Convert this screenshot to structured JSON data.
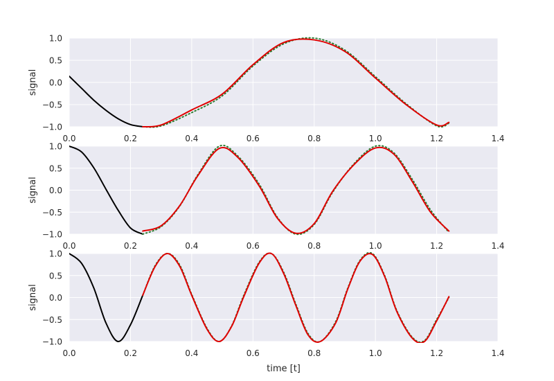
{
  "chart_data": [
    {
      "type": "line",
      "title": "",
      "ylabel": "signal",
      "xlabel": "",
      "xlim": [
        0.0,
        1.4
      ],
      "ylim": [
        -1.0,
        1.0
      ],
      "xticks": [
        "0.0",
        "0.2",
        "0.4",
        "0.6",
        "0.8",
        "1.0",
        "1.2",
        "1.4"
      ],
      "yticks": [
        "1.0",
        "0.5",
        "0.0",
        "−0.5",
        "−1.0"
      ],
      "grid": true,
      "series": [
        {
          "role": "input",
          "color": "#000000",
          "style": "solid",
          "x": [
            0.0,
            0.04,
            0.08,
            0.12,
            0.16,
            0.2,
            0.24
          ],
          "y": [
            0.14,
            -0.13,
            -0.4,
            -0.63,
            -0.82,
            -0.95,
            -1.0
          ]
        },
        {
          "role": "target",
          "color": "#2e7d32",
          "style": "dotted",
          "x": [
            0.24,
            0.3,
            0.4,
            0.5,
            0.6,
            0.7,
            0.8,
            0.9,
            1.0,
            1.1,
            1.2,
            1.24
          ],
          "y": [
            -1.0,
            -0.98,
            -0.68,
            -0.3,
            0.37,
            0.87,
            1.0,
            0.73,
            0.13,
            -0.48,
            -0.98,
            -0.92
          ]
        },
        {
          "role": "prediction",
          "color": "#e00000",
          "style": "solid",
          "x": [
            0.24,
            0.3,
            0.4,
            0.5,
            0.6,
            0.7,
            0.8,
            0.9,
            1.0,
            1.1,
            1.2,
            1.24
          ],
          "y": [
            -1.0,
            -0.96,
            -0.62,
            -0.26,
            0.4,
            0.9,
            0.96,
            0.7,
            0.1,
            -0.5,
            -0.96,
            -0.9
          ]
        }
      ]
    },
    {
      "type": "line",
      "title": "",
      "ylabel": "signal",
      "xlabel": "",
      "xlim": [
        0.0,
        1.4
      ],
      "ylim": [
        -1.0,
        1.0
      ],
      "xticks": [
        "0.0",
        "0.2",
        "0.4",
        "0.6",
        "0.8",
        "1.0",
        "1.2",
        "1.4"
      ],
      "yticks": [
        "1.0",
        "0.5",
        "0.0",
        "−0.5",
        "−1.0"
      ],
      "grid": true,
      "series": [
        {
          "role": "input",
          "color": "#000000",
          "style": "solid",
          "x": [
            0.0,
            0.04,
            0.08,
            0.12,
            0.16,
            0.2,
            0.24
          ],
          "y": [
            1.0,
            0.87,
            0.51,
            0.02,
            -0.46,
            -0.86,
            -1.0
          ]
        },
        {
          "role": "target",
          "color": "#2e7d32",
          "style": "dotted",
          "x": [
            0.24,
            0.3,
            0.36,
            0.42,
            0.49,
            0.55,
            0.62,
            0.68,
            0.74,
            0.8,
            0.86,
            0.93,
            1.0,
            1.06,
            1.12,
            1.18,
            1.24
          ],
          "y": [
            -1.0,
            -0.83,
            -0.37,
            0.35,
            1.0,
            0.78,
            0.14,
            -0.62,
            -1.0,
            -0.78,
            -0.05,
            0.6,
            1.0,
            0.85,
            0.25,
            -0.45,
            -0.96
          ]
        },
        {
          "role": "prediction",
          "color": "#e00000",
          "style": "solid",
          "x": [
            0.24,
            0.3,
            0.36,
            0.42,
            0.49,
            0.55,
            0.62,
            0.68,
            0.74,
            0.8,
            0.86,
            0.93,
            1.0,
            1.06,
            1.12,
            1.18,
            1.24
          ],
          "y": [
            -0.93,
            -0.81,
            -0.36,
            0.33,
            0.95,
            0.75,
            0.1,
            -0.64,
            -0.98,
            -0.76,
            -0.03,
            0.58,
            0.96,
            0.82,
            0.2,
            -0.5,
            -0.93
          ]
        }
      ]
    },
    {
      "type": "line",
      "title": "",
      "ylabel": "signal",
      "xlabel": "time [t]",
      "xlim": [
        0.0,
        1.4
      ],
      "ylim": [
        -1.0,
        1.0
      ],
      "xticks": [
        "0.0",
        "0.2",
        "0.4",
        "0.6",
        "0.8",
        "1.0",
        "1.2",
        "1.4"
      ],
      "yticks": [
        "1.0",
        "0.5",
        "0.0",
        "−0.5",
        "−1.0"
      ],
      "grid": true,
      "series": [
        {
          "role": "input",
          "color": "#000000",
          "style": "solid",
          "x": [
            0.0,
            0.04,
            0.08,
            0.12,
            0.16,
            0.2,
            0.24
          ],
          "y": [
            1.0,
            0.78,
            0.22,
            -0.58,
            -1.0,
            -0.62,
            0.05
          ]
        },
        {
          "role": "target",
          "color": "#2e7d32",
          "style": "dotted",
          "x": [
            0.24,
            0.28,
            0.32,
            0.36,
            0.4,
            0.45,
            0.49,
            0.53,
            0.57,
            0.62,
            0.66,
            0.7,
            0.74,
            0.78,
            0.82,
            0.87,
            0.91,
            0.95,
            0.99,
            1.03,
            1.07,
            1.12,
            1.16,
            1.2,
            1.24
          ],
          "y": [
            0.05,
            0.72,
            1.0,
            0.75,
            0.07,
            -0.7,
            -1.0,
            -0.65,
            0.05,
            0.8,
            1.0,
            0.58,
            -0.15,
            -0.82,
            -1.0,
            -0.55,
            0.22,
            0.85,
            1.0,
            0.5,
            -0.3,
            -0.9,
            -0.98,
            -0.5,
            0.0
          ]
        },
        {
          "role": "prediction",
          "color": "#e00000",
          "style": "solid",
          "x": [
            0.24,
            0.28,
            0.32,
            0.36,
            0.4,
            0.45,
            0.49,
            0.53,
            0.57,
            0.62,
            0.66,
            0.7,
            0.74,
            0.78,
            0.82,
            0.87,
            0.91,
            0.95,
            0.99,
            1.03,
            1.07,
            1.12,
            1.16,
            1.2,
            1.24
          ],
          "y": [
            0.05,
            0.7,
            1.0,
            0.72,
            0.05,
            -0.72,
            -1.0,
            -0.66,
            0.02,
            0.78,
            1.0,
            0.55,
            -0.18,
            -0.85,
            -1.0,
            -0.58,
            0.2,
            0.83,
            0.98,
            0.48,
            -0.32,
            -0.92,
            -1.0,
            -0.53,
            0.02
          ]
        }
      ]
    }
  ]
}
